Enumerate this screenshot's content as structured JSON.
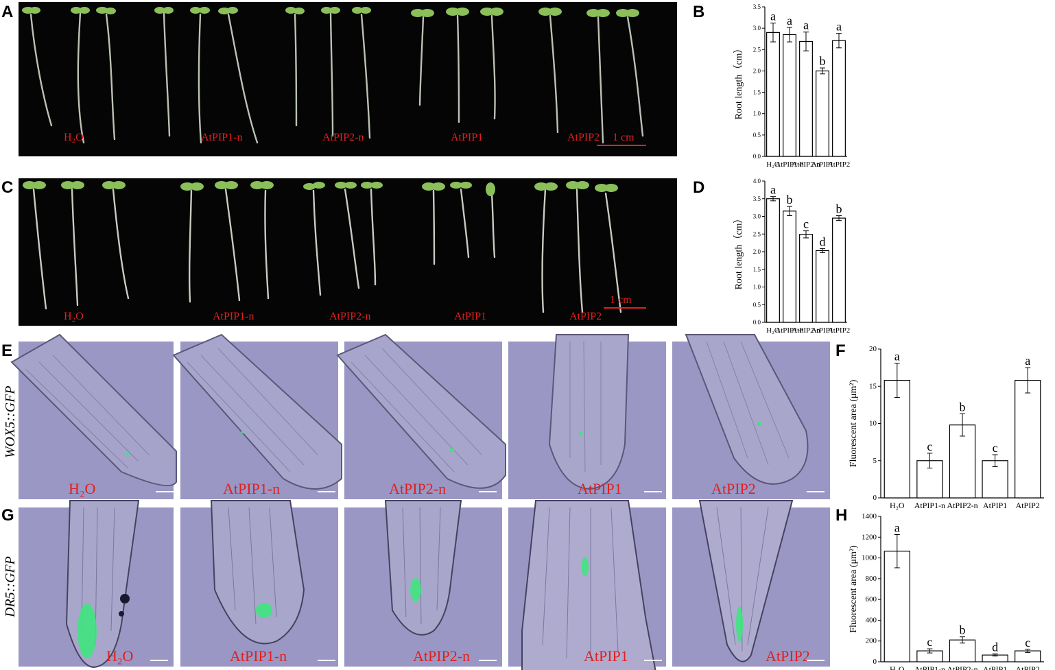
{
  "panels": [
    "A",
    "B",
    "C",
    "D",
    "E",
    "F",
    "G",
    "H"
  ],
  "row_a_labels": [
    "H₂O",
    "AtPIP1-n",
    "AtPIP2-n",
    "AtPIP1",
    "AtPIP2"
  ],
  "row_c_labels": [
    "H₂O",
    "AtPIP1-n",
    "AtPIP2-n",
    "AtPIP1",
    "AtPIP2"
  ],
  "row_e_labels": [
    "H₂O",
    "AtPIP1-n",
    "AtPIP2-n",
    "AtPIP1",
    "AtPIP2"
  ],
  "row_g_labels": [
    "H₂O",
    "AtPIP1-n",
    "AtPIP2-n",
    "AtPIP1",
    "AtPIP2"
  ],
  "scale_a": "1 cm",
  "scale_c": "1 cm",
  "side_e": "WOX5::GFP",
  "side_g": "DR5::GFP",
  "colors": {
    "label_red": "#e02020",
    "gfp_green": "#39e87a",
    "micro_bg": "#9a97c4"
  },
  "chart_data": [
    {
      "id": "B",
      "type": "bar",
      "categories": [
        "H₂O",
        "AtPIP1-n",
        "AtPIP2-n",
        "AtPIP1",
        "AtPIP2"
      ],
      "values": [
        2.9,
        2.85,
        2.69,
        2.0,
        2.71
      ],
      "errors": [
        0.22,
        0.17,
        0.22,
        0.07,
        0.17
      ],
      "letters": [
        "a",
        "a",
        "a",
        "b",
        "a"
      ],
      "ylabel": "Root length（cm）",
      "ylim": [
        0,
        3.5
      ],
      "yticks": [
        "0.0",
        "0.5",
        "1.0",
        "1.5",
        "2.0",
        "2.5",
        "3.0",
        "3.5"
      ]
    },
    {
      "id": "D",
      "type": "bar",
      "categories": [
        "H₂O",
        "AtPIP1-n",
        "AtPIP2-n",
        "AtPIP1",
        "AtPIP2"
      ],
      "values": [
        3.5,
        3.15,
        2.49,
        2.03,
        2.95
      ],
      "errors": [
        0.06,
        0.13,
        0.1,
        0.06,
        0.07
      ],
      "letters": [
        "a",
        "b",
        "c",
        "d",
        "b"
      ],
      "ylabel": "Root length（cm）",
      "ylim": [
        0,
        4.0
      ],
      "yticks": [
        "0.0",
        "0.5",
        "1.0",
        "1.5",
        "2.0",
        "2.5",
        "3.0",
        "3.5",
        "4.0"
      ]
    },
    {
      "id": "F",
      "type": "bar",
      "categories": [
        "H₂O",
        "AtPIP1-n",
        "AtPIP2-n",
        "AtPIP1",
        "AtPIP2"
      ],
      "values": [
        15.8,
        5.0,
        9.8,
        5.0,
        15.8
      ],
      "errors": [
        2.3,
        1.0,
        1.5,
        0.8,
        1.7
      ],
      "letters": [
        "a",
        "c",
        "b",
        "c",
        "a"
      ],
      "ylabel": "Fluorescent area (μm²)",
      "ylim": [
        0,
        20
      ],
      "yticks": [
        "0",
        "5",
        "10",
        "15",
        "20"
      ]
    },
    {
      "id": "H",
      "type": "bar",
      "categories": [
        "H₂O",
        "AtPIP1-n",
        "AtPIP2-n",
        "AtPIP1",
        "AtPIP2"
      ],
      "values": [
        1065,
        105,
        210,
        65,
        105
      ],
      "errors": [
        160,
        20,
        30,
        10,
        15
      ],
      "letters": [
        "a",
        "c",
        "b",
        "d",
        "c"
      ],
      "ylabel": "Fluorescent area (μm²)",
      "ylim": [
        0,
        1400
      ],
      "yticks": [
        "0",
        "200",
        "400",
        "600",
        "800",
        "1000",
        "1200",
        "1400"
      ]
    }
  ]
}
